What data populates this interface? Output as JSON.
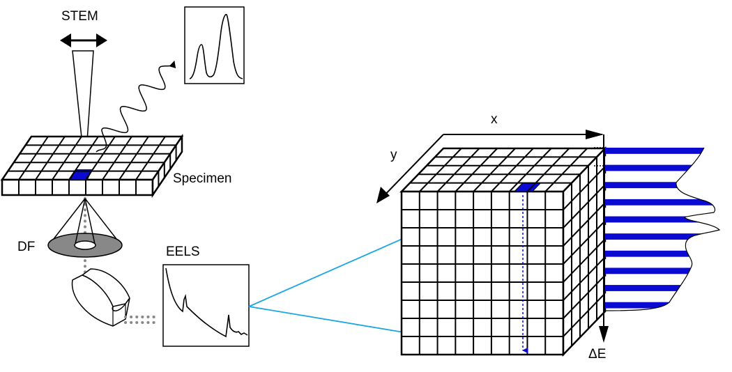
{
  "labels": {
    "stem": "STEM",
    "specimen": "Specimen",
    "df": "DF",
    "eels": "EELS",
    "x_axis": "x",
    "y_axis": "y",
    "energy_axis": "ΔE"
  },
  "colors": {
    "highlight": "#0a0ad2",
    "arrow": "#1aa6e6",
    "ring": "#808080",
    "ink": "#000000"
  }
}
